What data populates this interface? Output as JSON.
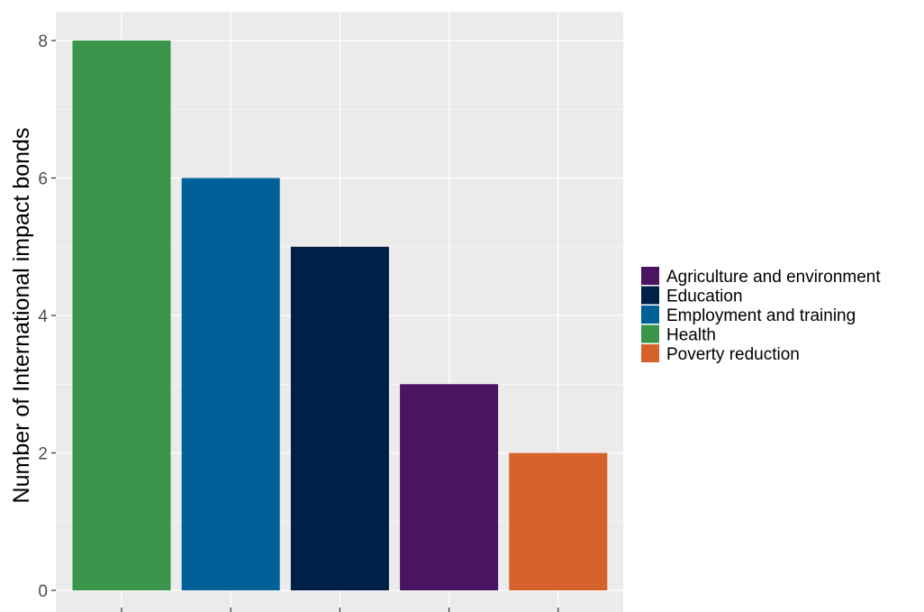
{
  "chart_data": {
    "type": "bar",
    "title": "",
    "xlabel": "",
    "ylabel": "Number of International impact bonds",
    "ylim": [
      0,
      8.4
    ],
    "yticks": [
      0,
      2,
      4,
      6,
      8
    ],
    "grid": true,
    "legend_position": "right",
    "x_tick_labels_shown": false,
    "bars": [
      {
        "category": "Health",
        "value": 8
      },
      {
        "category": "Employment and training",
        "value": 6
      },
      {
        "category": "Education",
        "value": 5
      },
      {
        "category": "Agriculture and environment",
        "value": 3
      },
      {
        "category": "Poverty reduction",
        "value": 2
      }
    ],
    "legend": [
      {
        "label": "Agriculture and environment",
        "color": "#4a1461"
      },
      {
        "label": "Education",
        "color": "#002147"
      },
      {
        "label": "Employment and training",
        "color": "#006098"
      },
      {
        "label": "Health",
        "color": "#3a944a"
      },
      {
        "label": "Poverty reduction",
        "color": "#d6622b"
      }
    ]
  },
  "colors": {
    "panel_background": "#ebebeb",
    "grid_line": "#ffffff"
  }
}
